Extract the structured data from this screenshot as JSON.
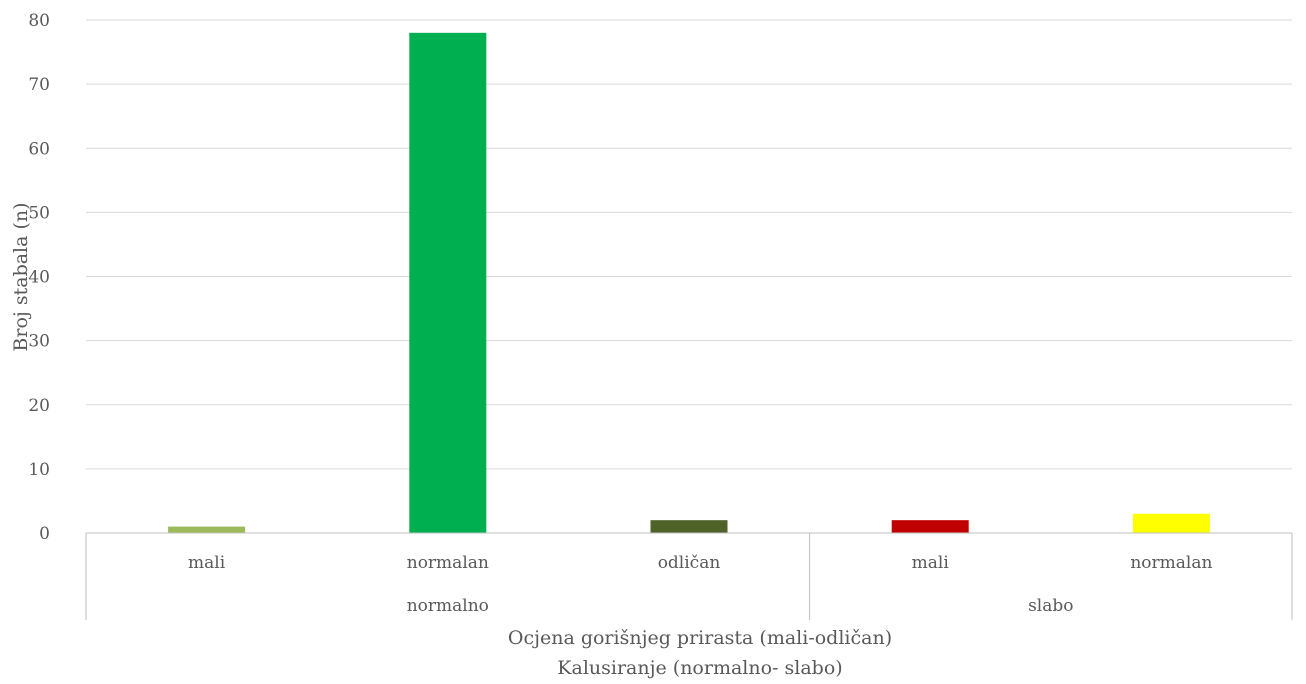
{
  "chart_data": {
    "type": "bar",
    "title": "",
    "groups": [
      {
        "label": "normalno",
        "categories": [
          "mali",
          "normalan",
          "odličan"
        ]
      },
      {
        "label": "slabo",
        "categories": [
          "mali",
          "normalan"
        ]
      }
    ],
    "categories": [
      "mali",
      "normalan",
      "odličan",
      "mali",
      "normalan"
    ],
    "values": [
      1,
      78,
      2,
      2,
      3
    ],
    "colors": [
      "#9bbb59",
      "#00b050",
      "#4f6228",
      "#c00000",
      "#ffff00"
    ],
    "ylabel": "Broj stabala (n)",
    "xlabel_line1": "Ocjena gorišnjeg prirasta (mali-odličan)",
    "xlabel_line2": "Kalusiranje (normalno- slabo)",
    "ylim": [
      0,
      80
    ],
    "yticks": [
      0,
      10,
      20,
      30,
      40,
      50,
      60,
      70,
      80
    ],
    "grid": true,
    "legend": "none"
  }
}
